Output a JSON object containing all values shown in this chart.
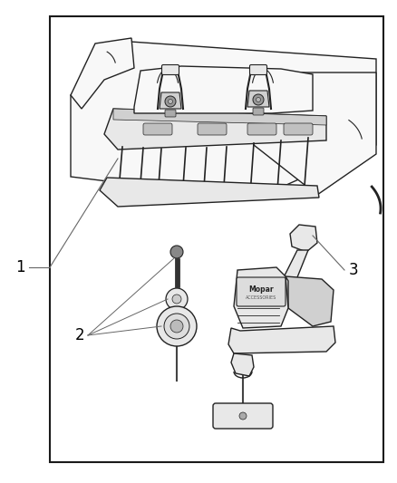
{
  "background_color": "#ffffff",
  "border_color": "#1a1a1a",
  "border_lw": 1.5,
  "label_1": "1",
  "label_2": "2",
  "label_3": "3",
  "line_color": "#222222",
  "fill_light": "#f8f8f8",
  "fill_mid": "#e8e8e8",
  "fill_dark": "#d0d0d0",
  "fill_darker": "#b8b8b8"
}
